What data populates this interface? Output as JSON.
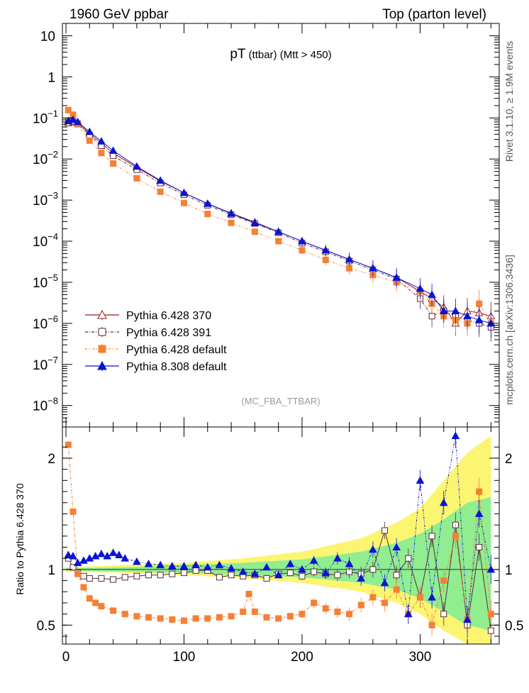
{
  "header": {
    "left": "1960 GeV ppbar",
    "right": "Top (parton level)"
  },
  "side_labels": {
    "rivet": "Rivet 3.1.10, ≥ 1.9M events",
    "mcplots": "mcplots.cern.ch [arXiv:1306.3436]"
  },
  "chart_data": {
    "type": "scatter",
    "title": "pT (ttbar) (Mtt > 450)",
    "title_main": "pT",
    "title_sub": "(ttbar) (Mtt > 450)",
    "analysis_tag": "(MC_FBA_TTBAR)",
    "ylabel_ratio": "Ratio to Pythia 6.428 370",
    "xlim": [
      -3,
      367
    ],
    "ylim_main": [
      3e-09,
      20
    ],
    "ylim_ratio": [
      0.33,
      2.28
    ],
    "y_scale_main": "log",
    "x_ticks": [
      0,
      100,
      200,
      300
    ],
    "main_y_ticks": [
      {
        "v": 10,
        "label": "10",
        "exp": ""
      },
      {
        "v": 1,
        "label": "1",
        "exp": ""
      },
      {
        "v": 0.1,
        "label": "10",
        "exp": "−1"
      },
      {
        "v": 0.01,
        "label": "10",
        "exp": "−2"
      },
      {
        "v": 0.001,
        "label": "10",
        "exp": "−3"
      },
      {
        "v": 0.0001,
        "label": "10",
        "exp": "−4"
      },
      {
        "v": 1e-05,
        "label": "10",
        "exp": "−5"
      },
      {
        "v": 1e-06,
        "label": "10",
        "exp": "−6"
      },
      {
        "v": 1e-07,
        "label": "10",
        "exp": "−7"
      },
      {
        "v": 1e-08,
        "label": "10",
        "exp": "−8"
      }
    ],
    "ratio_y_ticks": [
      {
        "v": 2,
        "label": "2"
      },
      {
        "v": 1,
        "label": "1"
      },
      {
        "v": 0.5,
        "label": "0.5"
      }
    ],
    "legend_position": "bottom-left",
    "legend": [
      {
        "label": "Pythia 6.428 370",
        "color": "#9a1b1b",
        "marker": "triangle-open"
      },
      {
        "label": "Pythia 6.428 391",
        "color": "#5a2a3a",
        "marker": "square-open"
      },
      {
        "label": "Pythia 6.428 default",
        "color": "#f58034",
        "marker": "square-filled"
      },
      {
        "label": "Pythia 8.308 default",
        "color": "#0a14d2",
        "marker": "triangle-filled"
      }
    ],
    "bands": [
      {
        "name": "yellow",
        "color": "#fbf571",
        "x": [
          0,
          50,
          100,
          150,
          200,
          250,
          280,
          300,
          320,
          340,
          360
        ],
        "lo": [
          0.98,
          0.97,
          0.95,
          0.92,
          0.88,
          0.8,
          0.7,
          0.6,
          0.45,
          0.33,
          0.33
        ],
        "hi": [
          1.02,
          1.04,
          1.06,
          1.1,
          1.16,
          1.28,
          1.42,
          1.55,
          1.8,
          2.05,
          2.2
        ]
      },
      {
        "name": "green",
        "color": "#90ed90",
        "x": [
          0,
          50,
          100,
          150,
          200,
          250,
          280,
          300,
          320,
          340,
          360
        ],
        "lo": [
          0.99,
          0.98,
          0.97,
          0.95,
          0.93,
          0.88,
          0.82,
          0.74,
          0.62,
          0.5,
          0.45
        ],
        "hi": [
          1.01,
          1.02,
          1.04,
          1.06,
          1.09,
          1.16,
          1.24,
          1.32,
          1.45,
          1.6,
          1.65
        ]
      }
    ],
    "series": [
      {
        "name": "Pythia 6.428 370",
        "color": "#9a1b1b",
        "marker": "triangle-open",
        "x": [
          2,
          6,
          10,
          20,
          30,
          40,
          60,
          80,
          100,
          120,
          140,
          160,
          180,
          200,
          220,
          240,
          260,
          280,
          300,
          310,
          320,
          330,
          340,
          350,
          360
        ],
        "y": [
          0.075,
          0.08,
          0.075,
          0.042,
          0.024,
          0.014,
          0.0062,
          0.0029,
          0.0015,
          0.00082,
          0.00048,
          0.00029,
          0.00017,
          0.0001,
          6e-05,
          3.6e-05,
          2.2e-05,
          1.3e-05,
          6e-06,
          4e-06,
          2.5e-06,
          1e-06,
          2e-06,
          1.8e-06,
          1.5e-06
        ]
      },
      {
        "name": "Pythia 6.428 391",
        "color": "#5a2a3a",
        "marker": "square-open",
        "x": [
          2,
          6,
          10,
          20,
          30,
          40,
          60,
          80,
          100,
          120,
          140,
          160,
          180,
          200,
          220,
          240,
          260,
          280,
          300,
          310,
          320,
          330,
          340,
          350,
          360
        ],
        "y": [
          0.085,
          0.082,
          0.072,
          0.038,
          0.021,
          0.012,
          0.0055,
          0.0026,
          0.00135,
          0.00075,
          0.00044,
          0.00027,
          0.00016,
          9e-05,
          5.5e-05,
          3.3e-05,
          2e-05,
          1.2e-05,
          4e-06,
          1.5e-06,
          2e-06,
          1.5e-06,
          1.2e-06,
          1e-06,
          8e-07
        ]
      },
      {
        "name": "Pythia 6.428 default",
        "color": "#f58034",
        "marker": "square-filled",
        "x": [
          2,
          6,
          10,
          20,
          30,
          40,
          60,
          80,
          100,
          120,
          140,
          160,
          180,
          200,
          220,
          240,
          260,
          280,
          300,
          310,
          320,
          330,
          340,
          350,
          360
        ],
        "y": [
          0.155,
          0.12,
          0.07,
          0.028,
          0.014,
          0.0078,
          0.0034,
          0.0016,
          0.00085,
          0.00046,
          0.00028,
          0.00017,
          0.0001,
          6e-05,
          3.5e-05,
          2.2e-05,
          1.5e-05,
          1e-05,
          6e-06,
          3e-06,
          1.5e-06,
          1.2e-06,
          1e-06,
          3e-06,
          1e-06
        ]
      },
      {
        "name": "Pythia 8.308 default",
        "color": "#0a14d2",
        "marker": "triangle-filled",
        "x": [
          2,
          6,
          10,
          20,
          30,
          40,
          60,
          80,
          100,
          120,
          140,
          160,
          180,
          200,
          220,
          240,
          260,
          280,
          300,
          310,
          320,
          330,
          340,
          350,
          360
        ],
        "y": [
          0.085,
          0.09,
          0.08,
          0.046,
          0.027,
          0.016,
          0.0066,
          0.003,
          0.0015,
          0.00082,
          0.00047,
          0.00028,
          0.00017,
          0.0001,
          6e-05,
          3.6e-05,
          2.2e-05,
          1.3e-05,
          7e-06,
          5e-06,
          2e-06,
          2e-06,
          1.5e-06,
          1.2e-06,
          1e-06
        ]
      }
    ],
    "ratio_series": [
      {
        "name": "Pythia 6.428 370",
        "color": "#9a1b1b",
        "marker": "triangle-open",
        "x": [
          2,
          360
        ],
        "y": [
          1,
          1
        ]
      },
      {
        "name": "Pythia 6.428 391",
        "color": "#5a2a3a",
        "marker": "square-open",
        "x": [
          2,
          6,
          10,
          15,
          20,
          30,
          40,
          50,
          60,
          70,
          80,
          90,
          100,
          110,
          120,
          130,
          140,
          150,
          160,
          170,
          180,
          190,
          200,
          210,
          220,
          230,
          240,
          250,
          260,
          270,
          280,
          290,
          300,
          310,
          320,
          330,
          340,
          350,
          360
        ],
        "y": [
          1.1,
          1.02,
          0.97,
          0.94,
          0.92,
          0.92,
          0.91,
          0.93,
          0.94,
          0.95,
          0.95,
          0.96,
          0.97,
          0.99,
          0.99,
          0.93,
          0.95,
          0.94,
          0.95,
          0.92,
          0.96,
          0.97,
          0.94,
          0.98,
          0.96,
          0.95,
          0.98,
          0.96,
          1.0,
          1.35,
          0.95,
          1.1,
          0.75,
          1.3,
          0.6,
          1.4,
          0.5,
          1.2,
          0.45
        ]
      },
      {
        "name": "Pythia 6.428 default",
        "color": "#f58034",
        "marker": "square-filled",
        "x": [
          2,
          6,
          10,
          15,
          20,
          25,
          30,
          40,
          50,
          60,
          70,
          80,
          90,
          100,
          110,
          120,
          130,
          140,
          150,
          155,
          160,
          170,
          180,
          190,
          200,
          210,
          220,
          230,
          240,
          250,
          260,
          270,
          280,
          290,
          300,
          310,
          320,
          330,
          340,
          350,
          360
        ],
        "y": [
          2.12,
          1.52,
          0.96,
          0.84,
          0.74,
          0.7,
          0.67,
          0.63,
          0.6,
          0.58,
          0.57,
          0.56,
          0.55,
          0.54,
          0.56,
          0.56,
          0.57,
          0.58,
          0.62,
          0.78,
          0.62,
          0.57,
          0.56,
          0.58,
          0.6,
          0.7,
          0.65,
          0.62,
          0.6,
          0.68,
          0.75,
          0.7,
          0.82,
          0.6,
          0.75,
          0.5,
          0.9,
          1.3,
          0.55,
          1.7,
          0.6
        ]
      },
      {
        "name": "Pythia 8.308 default",
        "color": "#0a14d2",
        "marker": "triangle-filled",
        "x": [
          2,
          6,
          10,
          15,
          20,
          25,
          30,
          35,
          40,
          45,
          50,
          60,
          70,
          80,
          90,
          100,
          110,
          120,
          130,
          140,
          150,
          160,
          170,
          180,
          190,
          200,
          210,
          220,
          230,
          240,
          250,
          260,
          270,
          280,
          290,
          300,
          310,
          320,
          330,
          340,
          350,
          360
        ],
        "y": [
          1.13,
          1.12,
          1.06,
          1.08,
          1.1,
          1.12,
          1.14,
          1.12,
          1.15,
          1.13,
          1.1,
          1.07,
          1.05,
          1.04,
          1.03,
          1.03,
          1.04,
          1.02,
          1.04,
          1.01,
          0.98,
          0.96,
          1.02,
          0.95,
          1.05,
          1.0,
          1.08,
          0.97,
          1.1,
          1.05,
          0.92,
          1.18,
          0.88,
          1.2,
          0.6,
          1.8,
          0.75,
          1.6,
          2.2,
          0.55,
          1.5,
          1.0
        ]
      }
    ]
  }
}
